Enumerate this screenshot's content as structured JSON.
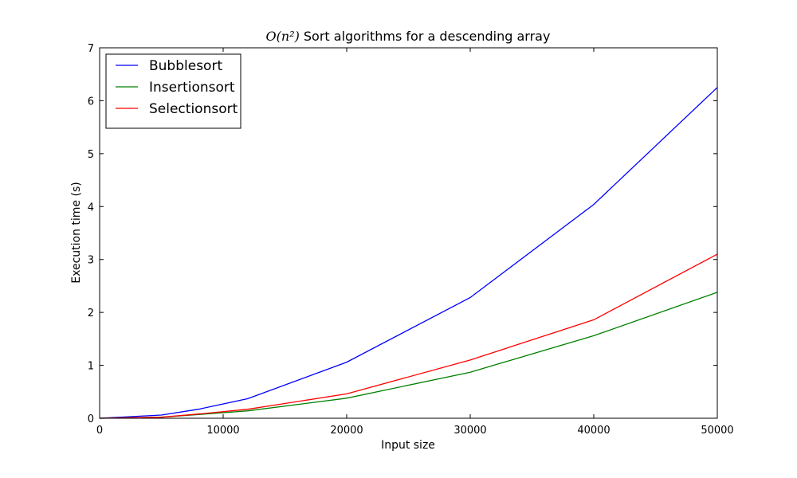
{
  "chart_data": {
    "type": "line",
    "title_math": "O(n²)",
    "title": "Sort algorithms for a descending array",
    "xlabel": "Input size",
    "ylabel": "Execution time (s)",
    "xlim": [
      0,
      50000
    ],
    "ylim": [
      0,
      7
    ],
    "xticks": [
      0,
      10000,
      20000,
      30000,
      40000,
      50000
    ],
    "yticks": [
      0,
      1,
      2,
      3,
      4,
      5,
      6,
      7
    ],
    "grid": false,
    "legend_position": "top-left",
    "x": [
      0,
      5000,
      8000,
      12000,
      20000,
      30000,
      40000,
      50000
    ],
    "series": [
      {
        "name": "Bubblesort",
        "color": "#0000ff",
        "values": [
          0.0,
          0.06,
          0.17,
          0.37,
          1.06,
          2.28,
          4.04,
          6.25
        ]
      },
      {
        "name": "Insertionsort",
        "color": "#008000",
        "values": [
          0.0,
          0.02,
          0.07,
          0.14,
          0.38,
          0.87,
          1.56,
          2.38
        ]
      },
      {
        "name": "Selectionsort",
        "color": "#ff0000",
        "values": [
          0.0,
          0.02,
          0.08,
          0.17,
          0.46,
          1.1,
          1.86,
          3.1
        ]
      }
    ]
  }
}
